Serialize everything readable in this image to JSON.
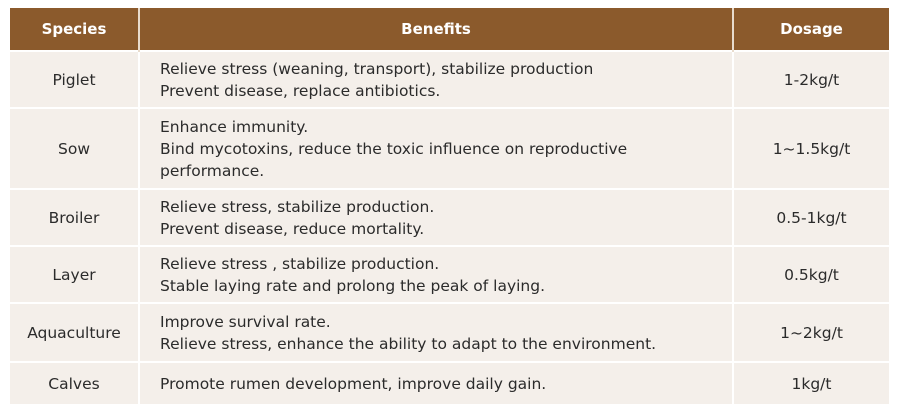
{
  "colors": {
    "header_bg": "#8b5a2c",
    "row_bg": "#f4efea",
    "header_text": "#ffffff"
  },
  "table": {
    "headers": [
      "Species",
      "Benefits",
      "Dosage"
    ],
    "rows": [
      {
        "species": "Piglet",
        "benefits": [
          "Relieve stress (weaning, transport), stabilize production",
          "Prevent disease, replace antibiotics."
        ],
        "dosage": "1-2kg/t"
      },
      {
        "species": "Sow",
        "benefits": [
          "Enhance immunity.",
          "Bind mycotoxins, reduce the toxic influence on reproductive",
          "performance."
        ],
        "dosage": "1~1.5kg/t"
      },
      {
        "species": "Broiler",
        "benefits": [
          "Relieve stress, stabilize production.",
          "Prevent disease, reduce mortality."
        ],
        "dosage": "0.5-1kg/t"
      },
      {
        "species": "Layer",
        "benefits": [
          "Relieve stress , stabilize production.",
          "Stable laying rate and prolong the peak of laying."
        ],
        "dosage": "0.5kg/t"
      },
      {
        "species": "Aquaculture",
        "benefits": [
          "Improve survival rate.",
          "Relieve stress, enhance the ability to adapt to the environment."
        ],
        "dosage": "1~2kg/t"
      },
      {
        "species": "Calves",
        "benefits": [
          "Promote rumen development, improve daily gain."
        ],
        "dosage": "1kg/t"
      }
    ]
  }
}
